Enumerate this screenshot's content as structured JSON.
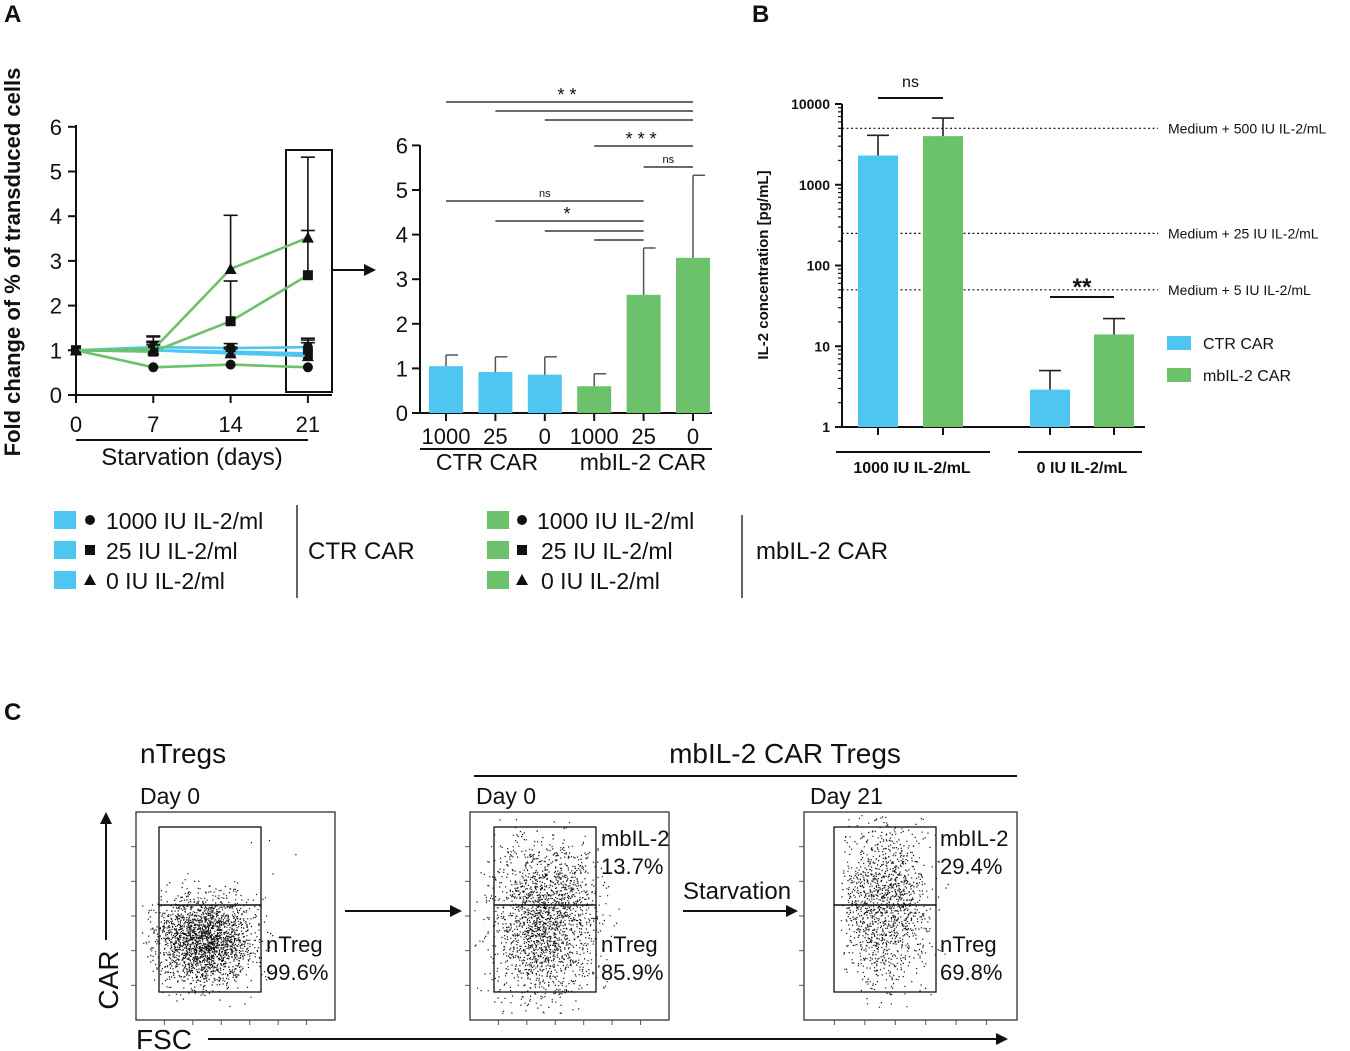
{
  "panels": {
    "a": "A",
    "b": "B",
    "c": "C"
  },
  "colors": {
    "ctr": "#4ec6ef",
    "mb": "#6cc16b"
  },
  "legend_a": {
    "ctr_items": [
      "1000 IU IL-2/ml",
      "25 IU IL-2/ml",
      "0 IU IL-2/ml"
    ],
    "ctr_group": "CTR CAR",
    "mb_items": [
      "1000 IU IL-2/ml",
      "25 IU IL-2/ml",
      "0 IU IL-2/ml"
    ],
    "mb_group": "mbIL-2 CAR"
  },
  "chart_data": [
    {
      "type": "line",
      "panel": "A-left",
      "ylabel": "Fold change of % of transduced cells",
      "xlabel": "Starvation (days)",
      "x": [
        0,
        7,
        14,
        21
      ],
      "ylim": [
        0,
        6
      ],
      "yticks": [
        0,
        1,
        2,
        3,
        4,
        5,
        6
      ],
      "series": [
        {
          "name": "CTR CAR 1000 IU IL-2/ml",
          "group": "ctr",
          "marker": "circle",
          "values": [
            1,
            1.07,
            1.05,
            1.07
          ],
          "err": [
            0,
            0.25,
            0.1,
            0.2
          ]
        },
        {
          "name": "CTR CAR 25 IU IL-2/ml",
          "group": "ctr",
          "marker": "square",
          "values": [
            1,
            1.0,
            0.97,
            0.93
          ],
          "err": [
            0,
            0.3,
            0.1,
            0.3
          ]
        },
        {
          "name": "CTR CAR 0 IU IL-2/ml",
          "group": "ctr",
          "marker": "triangle",
          "values": [
            1,
            1.0,
            0.93,
            0.87
          ],
          "err": [
            0,
            0.2,
            0.1,
            0.3
          ]
        },
        {
          "name": "mbIL-2 CAR 1000 IU IL-2/ml",
          "group": "mb",
          "marker": "circle",
          "values": [
            1,
            0.62,
            0.68,
            0.62
          ],
          "err": [
            0,
            0,
            0,
            0
          ]
        },
        {
          "name": "mbIL-2 CAR 25 IU IL-2/ml",
          "group": "mb",
          "marker": "square",
          "values": [
            1,
            0.97,
            1.65,
            2.68
          ],
          "err": [
            0,
            0.2,
            0.9,
            1.0
          ]
        },
        {
          "name": "mbIL-2 CAR 0 IU IL-2/ml",
          "group": "mb",
          "marker": "triangle",
          "values": [
            1,
            1.02,
            2.82,
            3.52
          ],
          "err": [
            0,
            0.1,
            1.2,
            1.8
          ]
        }
      ]
    },
    {
      "type": "bar",
      "panel": "A-right",
      "categories": [
        "1000",
        "25",
        "0",
        "1000",
        "25",
        "0"
      ],
      "groups": [
        "CTR CAR",
        "mbIL-2 CAR"
      ],
      "ylim": [
        0,
        6
      ],
      "yticks": [
        0,
        1,
        2,
        3,
        4,
        5,
        6
      ],
      "values": [
        1.05,
        0.92,
        0.86,
        0.6,
        2.65,
        3.48
      ],
      "err": [
        0.25,
        0.34,
        0.4,
        0.28,
        1.05,
        1.85
      ],
      "significance": [
        {
          "from": 0,
          "to": 5,
          "label": "**"
        },
        {
          "from": 1,
          "to": 5,
          "label": ""
        },
        {
          "from": 2,
          "to": 5,
          "label": ""
        },
        {
          "from": 3,
          "to": 5,
          "label": "***"
        },
        {
          "from": 4,
          "to": 5,
          "label": "ns"
        },
        {
          "from": 0,
          "to": 4,
          "label": "ns"
        },
        {
          "from": 1,
          "to": 4,
          "label": "*"
        },
        {
          "from": 2,
          "to": 4,
          "label": ""
        },
        {
          "from": 3,
          "to": 4,
          "label": ""
        }
      ]
    },
    {
      "type": "bar",
      "panel": "B",
      "scale": "log",
      "ylabel": "IL-2 concentration [pg/mL]",
      "ylim": [
        1,
        10000
      ],
      "yticks": [
        "1",
        "10",
        "100",
        "1000",
        "10000"
      ],
      "groups": [
        "1000 IU IL-2/mL",
        "0 IU IL-2/mL"
      ],
      "series": [
        {
          "name": "CTR CAR",
          "values": [
            2300,
            2.9
          ],
          "err_top": [
            4100,
            5.0
          ]
        },
        {
          "name": "mbIL-2 CAR",
          "values": [
            4000,
            14
          ],
          "err_top": [
            6700,
            22
          ]
        }
      ],
      "reference_lines": [
        {
          "label": "Medium + 500 IU IL-2/mL",
          "value": 5000
        },
        {
          "label": "Medium + 25 IU IL-2/mL",
          "value": 250
        },
        {
          "label": "Medium + 5 IU IL-2/mL",
          "value": 50
        }
      ],
      "significance": [
        {
          "group": 0,
          "label": "ns"
        },
        {
          "group": 1,
          "label": "**"
        }
      ]
    }
  ],
  "panel_c": {
    "ntregs_title": "nTregs",
    "mbil2_title": "mbIL-2 CAR Tregs",
    "plots": [
      {
        "day": "Day 0",
        "upper_label": "",
        "upper_value": "",
        "lower_label": "nTreg",
        "lower_value": "99.6%"
      },
      {
        "day": "Day 0",
        "upper_label": "mbIL-2",
        "upper_value": "13.7%",
        "lower_label": "nTreg",
        "lower_value": "85.9%"
      },
      {
        "day": "Day 21",
        "upper_label": "mbIL-2",
        "upper_value": "29.4%",
        "lower_label": "nTreg",
        "lower_value": "69.8%"
      }
    ],
    "starvation": "Starvation",
    "y_axis": "CAR",
    "x_axis": "FSC"
  }
}
